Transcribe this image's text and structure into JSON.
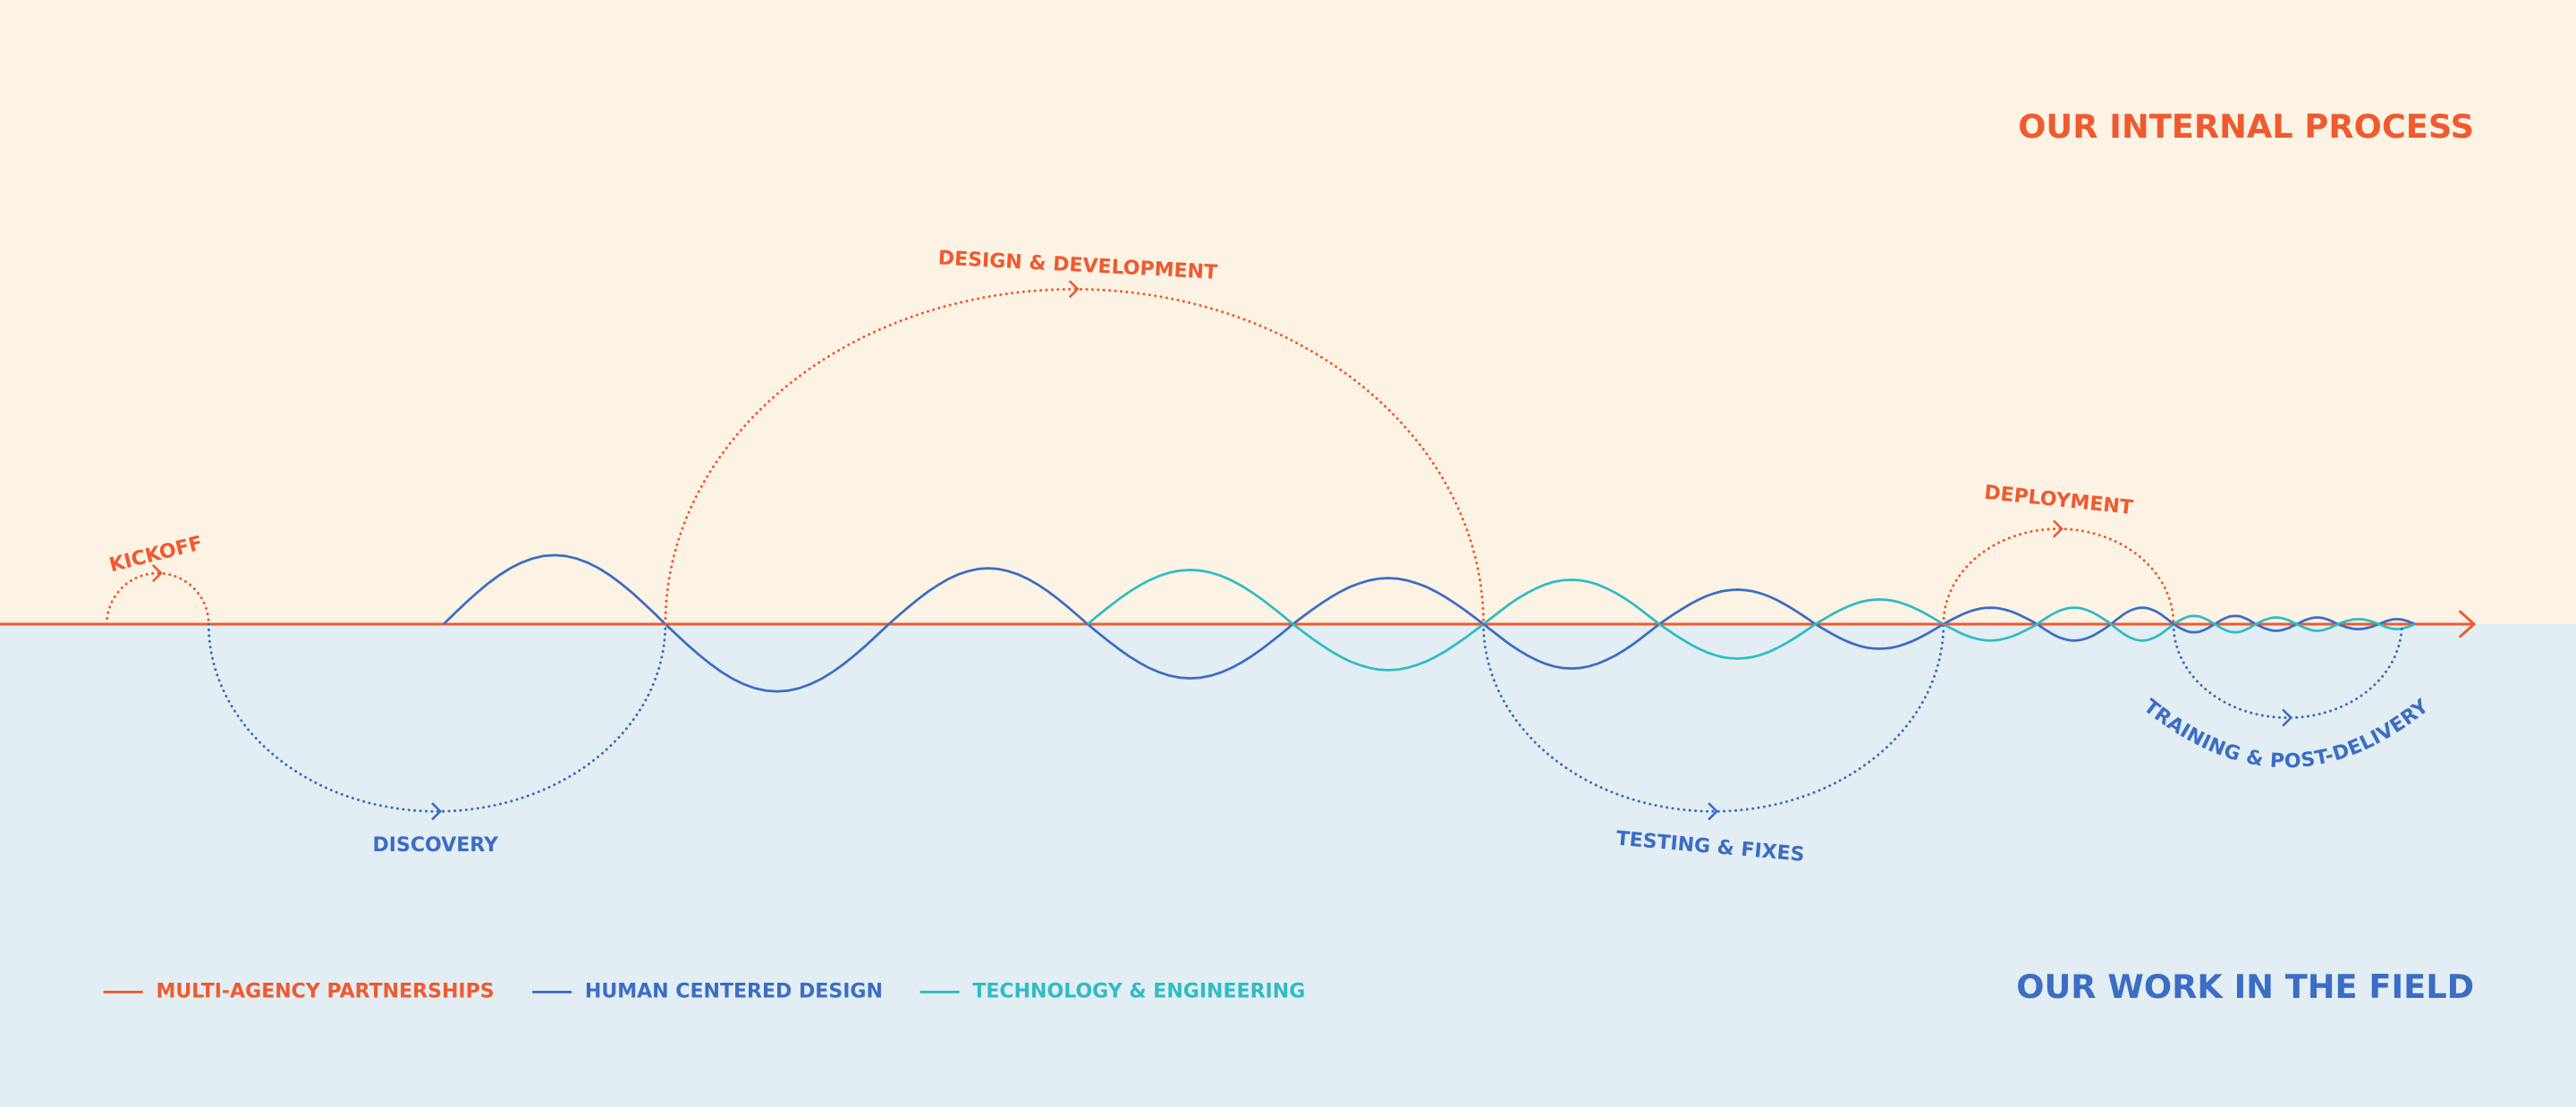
{
  "header": {
    "title": "OUR INTERNAL PROCESS"
  },
  "footer": {
    "title": "OUR WORK IN THE FIELD"
  },
  "phases": [
    {
      "label": "KICKOFF"
    },
    {
      "label": "DISCOVERY"
    },
    {
      "label": "DESIGN & DEVELOPMENT"
    },
    {
      "label": "TESTING & FIXES"
    },
    {
      "label": "DEPLOYMENT"
    },
    {
      "label": "TRAINING & POST-DELIVERY"
    }
  ],
  "legend": [
    {
      "label": "MULTI-AGENCY PARTNERSHIPS",
      "color": "#ef5a2f"
    },
    {
      "label": "HUMAN CENTERED DESIGN",
      "color": "#3c6dc5"
    },
    {
      "label": "TECHNOLOGY & ENGINEERING",
      "color": "#2fbcc4"
    }
  ]
}
